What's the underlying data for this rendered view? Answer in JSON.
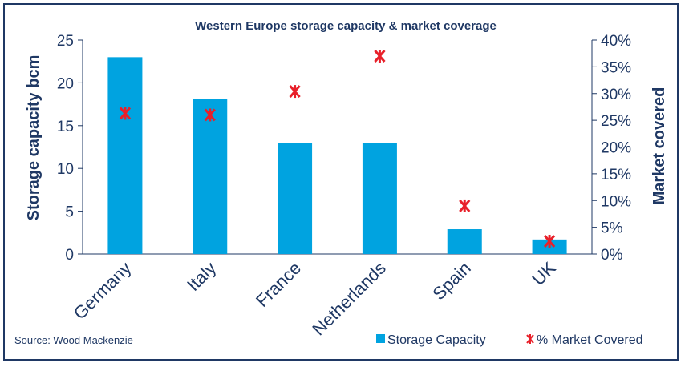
{
  "chart_data": {
    "type": "bar",
    "title": "Western Europe storage capacity & market coverage",
    "categories": [
      "Germany",
      "Italy",
      "France",
      "Netherlands",
      "Spain",
      "UK"
    ],
    "series": [
      {
        "name": "Storage Capacity",
        "type": "bar",
        "axis": "left",
        "color": "#00a3e0",
        "values": [
          23,
          18.1,
          13,
          13,
          2.9,
          1.7
        ]
      },
      {
        "name": "% Market Covered",
        "type": "scatter",
        "axis": "right",
        "color": "#e8202a",
        "values": [
          26.3,
          26.0,
          30.4,
          37.0,
          9.0,
          2.4
        ]
      }
    ],
    "ylabel": "Storage capacity bcm",
    "y2label": "Market covered",
    "ylim": [
      0,
      25
    ],
    "y2lim": [
      0,
      40
    ],
    "yticks": [
      "0",
      "5",
      "10",
      "15",
      "20",
      "25"
    ],
    "y2ticks": [
      "0%",
      "5%",
      "10%",
      "15%",
      "20%",
      "25%",
      "30%",
      "35%",
      "40%"
    ],
    "legend_position": "bottom-right",
    "source": "Source: Wood Mackenzie"
  }
}
